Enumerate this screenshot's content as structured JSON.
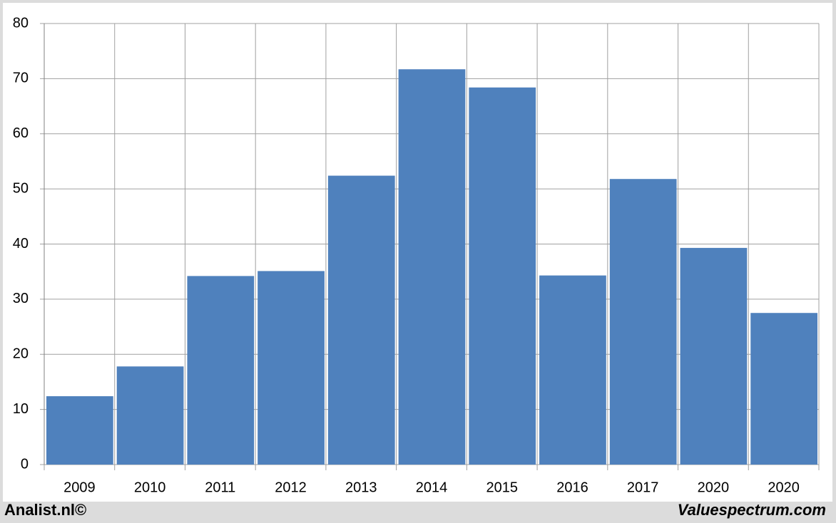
{
  "chart_data": {
    "type": "bar",
    "categories": [
      "2009",
      "2010",
      "2011",
      "2012",
      "2013",
      "2014",
      "2015",
      "2016",
      "2017",
      "2020",
      "2020"
    ],
    "values": [
      12.4,
      17.8,
      34.2,
      35.1,
      52.4,
      71.7,
      68.4,
      34.3,
      51.8,
      39.3,
      27.5
    ],
    "color": "#4f81bd",
    "ylim": [
      0,
      80
    ],
    "yticks": [
      0,
      10,
      20,
      30,
      40,
      50,
      60,
      70,
      80
    ],
    "grid": true,
    "source": "Analist.nl©",
    "watermark": "Valuespectrum.com"
  }
}
